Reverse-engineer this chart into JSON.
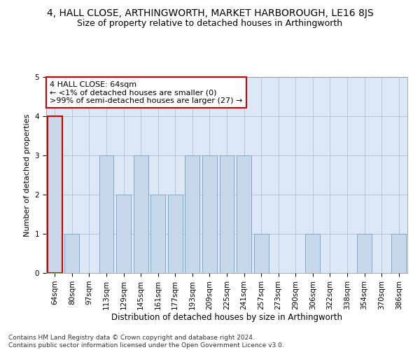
{
  "title": "4, HALL CLOSE, ARTHINGWORTH, MARKET HARBOROUGH, LE16 8JS",
  "subtitle": "Size of property relative to detached houses in Arthingworth",
  "xlabel": "Distribution of detached houses by size in Arthingworth",
  "ylabel": "Number of detached properties",
  "categories": [
    "64sqm",
    "80sqm",
    "97sqm",
    "113sqm",
    "129sqm",
    "145sqm",
    "161sqm",
    "177sqm",
    "193sqm",
    "209sqm",
    "225sqm",
    "241sqm",
    "257sqm",
    "273sqm",
    "290sqm",
    "306sqm",
    "322sqm",
    "338sqm",
    "354sqm",
    "370sqm",
    "386sqm"
  ],
  "values": [
    4,
    1,
    0,
    3,
    2,
    3,
    2,
    2,
    3,
    3,
    3,
    3,
    1,
    0,
    0,
    1,
    0,
    0,
    1,
    0,
    1
  ],
  "bar_color": "#c8d8eb",
  "bar_edge_color": "#7eabd0",
  "highlight_index": 0,
  "highlight_bar_edge_color": "#cc0000",
  "annotation_box_text": "4 HALL CLOSE: 64sqm\n← <1% of detached houses are smaller (0)\n>99% of semi-detached houses are larger (27) →",
  "annotation_box_edge_color": "#cc0000",
  "ylim": [
    0,
    5
  ],
  "yticks": [
    0,
    1,
    2,
    3,
    4,
    5
  ],
  "grid_color": "#aabcce",
  "background_color": "#dce8f5",
  "footer_text": "Contains HM Land Registry data © Crown copyright and database right 2024.\nContains public sector information licensed under the Open Government Licence v3.0.",
  "title_fontsize": 10,
  "subtitle_fontsize": 9,
  "xlabel_fontsize": 8.5,
  "ylabel_fontsize": 8,
  "tick_fontsize": 7.5,
  "annotation_fontsize": 8,
  "footer_fontsize": 6.5
}
